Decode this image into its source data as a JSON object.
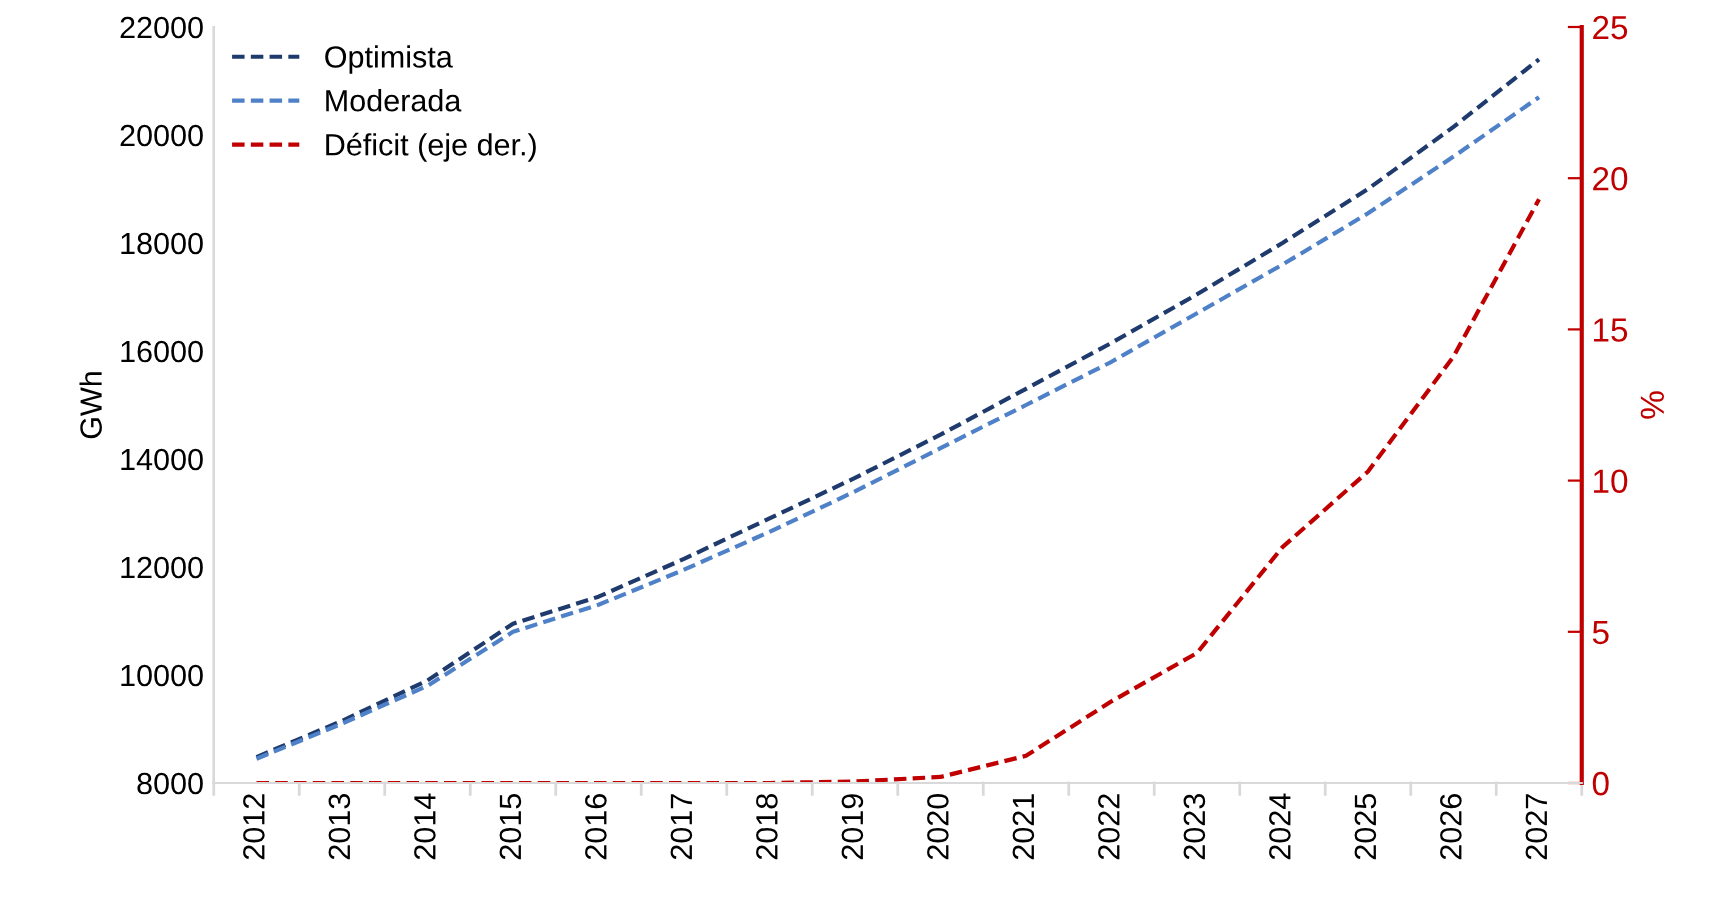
{
  "chart_data": {
    "type": "line",
    "ylabel": "GWh",
    "y2label": "%",
    "categories": [
      "2012",
      "2013",
      "2014",
      "2015",
      "2016",
      "2017",
      "2018",
      "2019",
      "2020",
      "2021",
      "2022",
      "2023",
      "2024",
      "2025",
      "2026",
      "2027"
    ],
    "series": [
      {
        "name": "Optimista",
        "color": "#1f3b6e",
        "values": [
          8480,
          9150,
          9900,
          10950,
          11450,
          12150,
          12900,
          13650,
          14450,
          15300,
          16150,
          17050,
          18000,
          19000,
          20150,
          21400
        ]
      },
      {
        "name": "Moderada",
        "color": "#4f81c8",
        "values": [
          8450,
          9100,
          9800,
          10800,
          11300,
          11950,
          12650,
          13400,
          14200,
          15000,
          15800,
          16700,
          17600,
          18550,
          19600,
          20700
        ]
      },
      {
        "name": "Déficit (eje der.)",
        "color": "#c00000",
        "axis": "y2",
        "values": [
          0,
          0,
          0,
          0,
          0,
          0,
          0,
          0.05,
          0.2,
          0.9,
          2.7,
          4.3,
          7.8,
          10.3,
          14.1,
          19.3
        ]
      }
    ],
    "ylim": [
      8000,
      22000
    ],
    "yticks": [
      8000,
      10000,
      12000,
      14000,
      16000,
      18000,
      20000,
      22000
    ],
    "y2lim": [
      0,
      25
    ],
    "y2ticks": [
      0,
      5,
      10,
      15,
      20,
      25
    ],
    "grid": false,
    "legend": "top left",
    "line_style": "dashed",
    "marker": "none"
  }
}
